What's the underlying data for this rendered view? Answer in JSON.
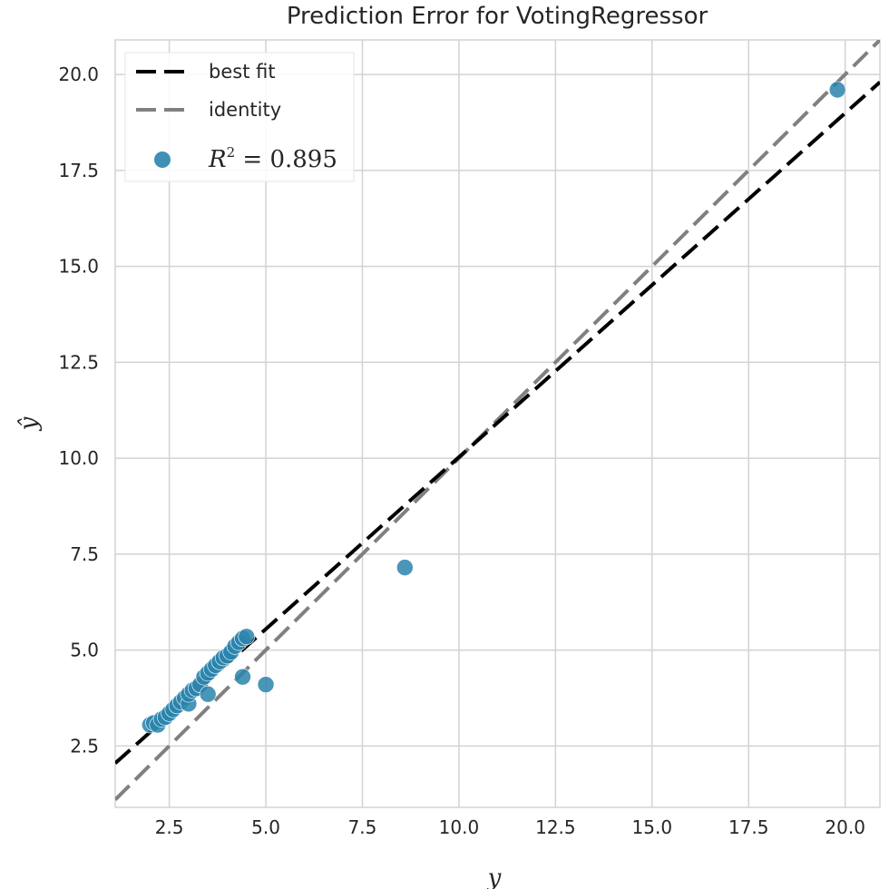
{
  "chart_data": {
    "type": "scatter",
    "title": "Prediction Error for VotingRegressor",
    "xlabel": "y",
    "ylabel": "ŷ",
    "xlim": [
      1.1,
      20.9
    ],
    "ylim": [
      0.9,
      20.9
    ],
    "xticks": [
      "2.5",
      "5.0",
      "7.5",
      "10.0",
      "12.5",
      "15.0",
      "17.5",
      "20.0"
    ],
    "yticks": [
      "2.5",
      "5.0",
      "7.5",
      "10.0",
      "12.5",
      "15.0",
      "17.5",
      "20.0"
    ],
    "grid": true,
    "legend_position": "top-left",
    "colors": {
      "points": "#2a84ad",
      "best_fit": "#000000",
      "identity": "#808080",
      "grid": "#d3d3d3"
    },
    "best_fit": {
      "label": "best fit",
      "x": [
        1.1,
        20.9
      ],
      "y": [
        2.05,
        19.8
      ]
    },
    "identity": {
      "label": "identity",
      "x": [
        1.1,
        20.9
      ],
      "y": [
        1.1,
        20.9
      ]
    },
    "legend_r2": {
      "prefix": "R",
      "sup": "2",
      "suffix": " = 0.895"
    },
    "points": {
      "x": [
        2.0,
        2.1,
        2.2,
        2.3,
        2.4,
        2.5,
        2.6,
        2.7,
        2.8,
        2.9,
        3.0,
        3.0,
        3.1,
        3.2,
        3.3,
        3.4,
        3.5,
        3.5,
        3.6,
        3.7,
        3.8,
        3.9,
        4.0,
        4.1,
        4.2,
        4.3,
        4.4,
        4.5,
        4.4,
        5.0,
        8.6,
        19.8
      ],
      "y": [
        3.05,
        3.1,
        3.05,
        3.2,
        3.25,
        3.35,
        3.45,
        3.55,
        3.65,
        3.75,
        3.6,
        3.85,
        3.95,
        4.0,
        4.1,
        4.3,
        4.4,
        3.85,
        4.5,
        4.6,
        4.7,
        4.8,
        4.85,
        4.95,
        5.1,
        5.2,
        5.3,
        5.35,
        4.3,
        4.1,
        7.15,
        19.6
      ]
    }
  }
}
